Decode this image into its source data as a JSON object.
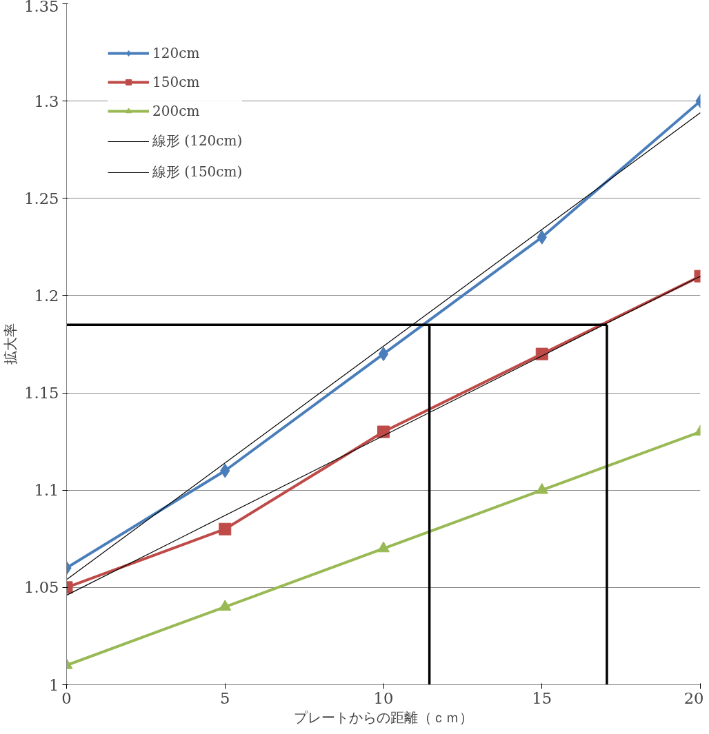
{
  "chart_data": {
    "type": "line",
    "xlabel": "プレートからの距離（ｃｍ）",
    "ylabel": "拡大率",
    "x": [
      0,
      5,
      10,
      15,
      20
    ],
    "xlim": [
      0,
      20
    ],
    "xticks": [
      0,
      5,
      10,
      15,
      20
    ],
    "ylim": [
      1,
      1.35
    ],
    "yticks": [
      1,
      1.05,
      1.1,
      1.15,
      1.2,
      1.25,
      1.3,
      1.35
    ],
    "grid": "y",
    "legend": "top left",
    "series": [
      {
        "name": "120cm",
        "color": "#4a7ebb",
        "marker": "diamond",
        "values": [
          1.06,
          1.11,
          1.17,
          1.23,
          1.3
        ]
      },
      {
        "name": "150cm",
        "color": "#be4b48",
        "marker": "square",
        "values": [
          1.05,
          1.08,
          1.13,
          1.17,
          1.21
        ]
      },
      {
        "name": "200cm",
        "color": "#98b954",
        "marker": "triangle",
        "values": [
          1.01,
          1.04,
          1.07,
          1.1,
          1.13
        ]
      },
      {
        "name": "線形 (120cm)",
        "color": "#000000",
        "marker": "none",
        "x": [
          0,
          20
        ],
        "values": [
          1.054,
          1.294
        ]
      },
      {
        "name": "線形 (150cm)",
        "color": "#000000",
        "marker": "none",
        "x": [
          0,
          20
        ],
        "values": [
          1.046,
          1.21
        ]
      },
      {
        "color": "#000000",
        "marker": "none",
        "x": [
          0,
          17.05
        ],
        "values": [
          1.185,
          1.185
        ]
      },
      {
        "color": "#000000",
        "marker": "none",
        "x": [
          11.45,
          11.45
        ],
        "values": [
          1,
          1.185
        ]
      },
      {
        "color": "#000000",
        "marker": "none",
        "x": [
          17.05,
          17.05
        ],
        "values": [
          1,
          1.185
        ]
      }
    ]
  }
}
